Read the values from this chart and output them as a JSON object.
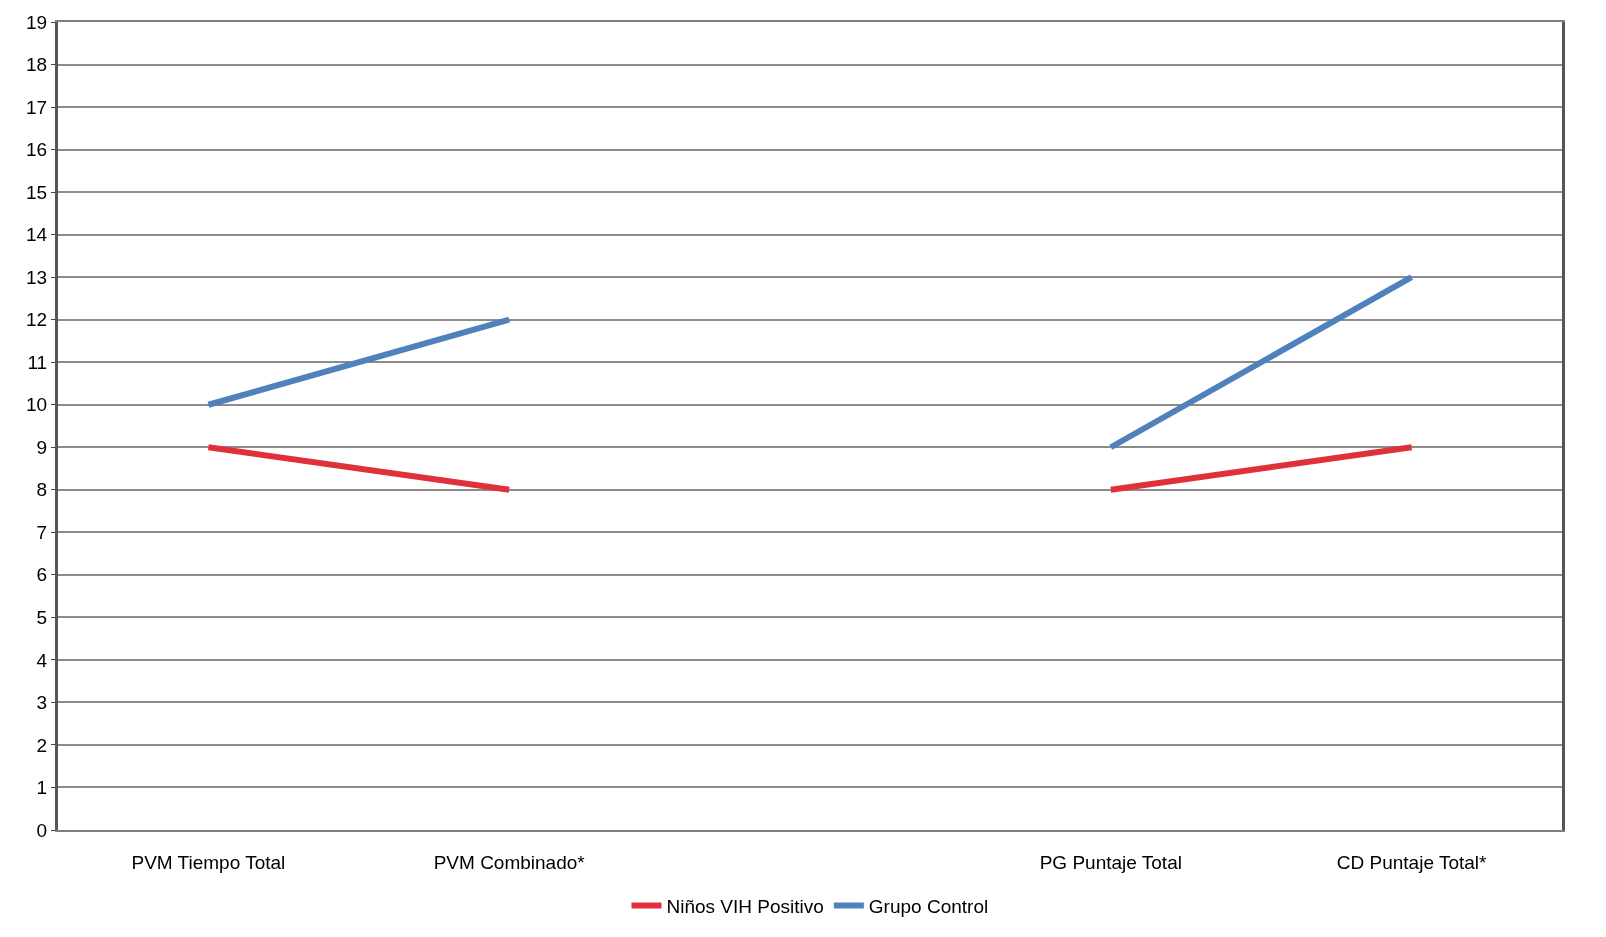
{
  "chart_data": {
    "type": "line",
    "categories": [
      "PVM Tiempo Total",
      "PVM Combinado*",
      null,
      "PG Puntaje Total",
      "CD Puntaje Total*"
    ],
    "series": [
      {
        "name": "Niños VIH Positivo",
        "color": "#e0313b",
        "values": [
          9,
          8,
          null,
          8,
          9
        ]
      },
      {
        "name": "Grupo Control",
        "color": "#4f81bd",
        "values": [
          10,
          12,
          null,
          9,
          13
        ]
      }
    ],
    "ylim": [
      0,
      19
    ],
    "yticks": [
      0,
      1,
      2,
      3,
      4,
      5,
      6,
      7,
      8,
      9,
      10,
      11,
      12,
      13,
      14,
      15,
      16,
      17,
      18,
      19
    ],
    "grid": "y",
    "legend": "bottom",
    "marker": "none",
    "line_style": "solid"
  }
}
